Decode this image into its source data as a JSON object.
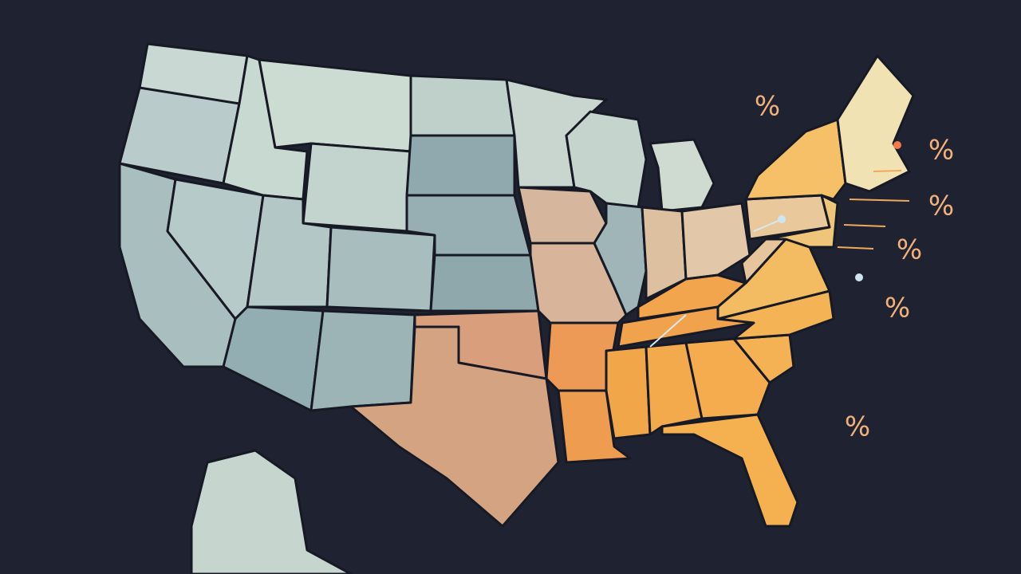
{
  "annotations": [
    {
      "text": "%"
    },
    {
      "text": "%"
    },
    {
      "text": "%"
    },
    {
      "text": "%"
    },
    {
      "text": "%"
    },
    {
      "text": "%"
    }
  ]
}
